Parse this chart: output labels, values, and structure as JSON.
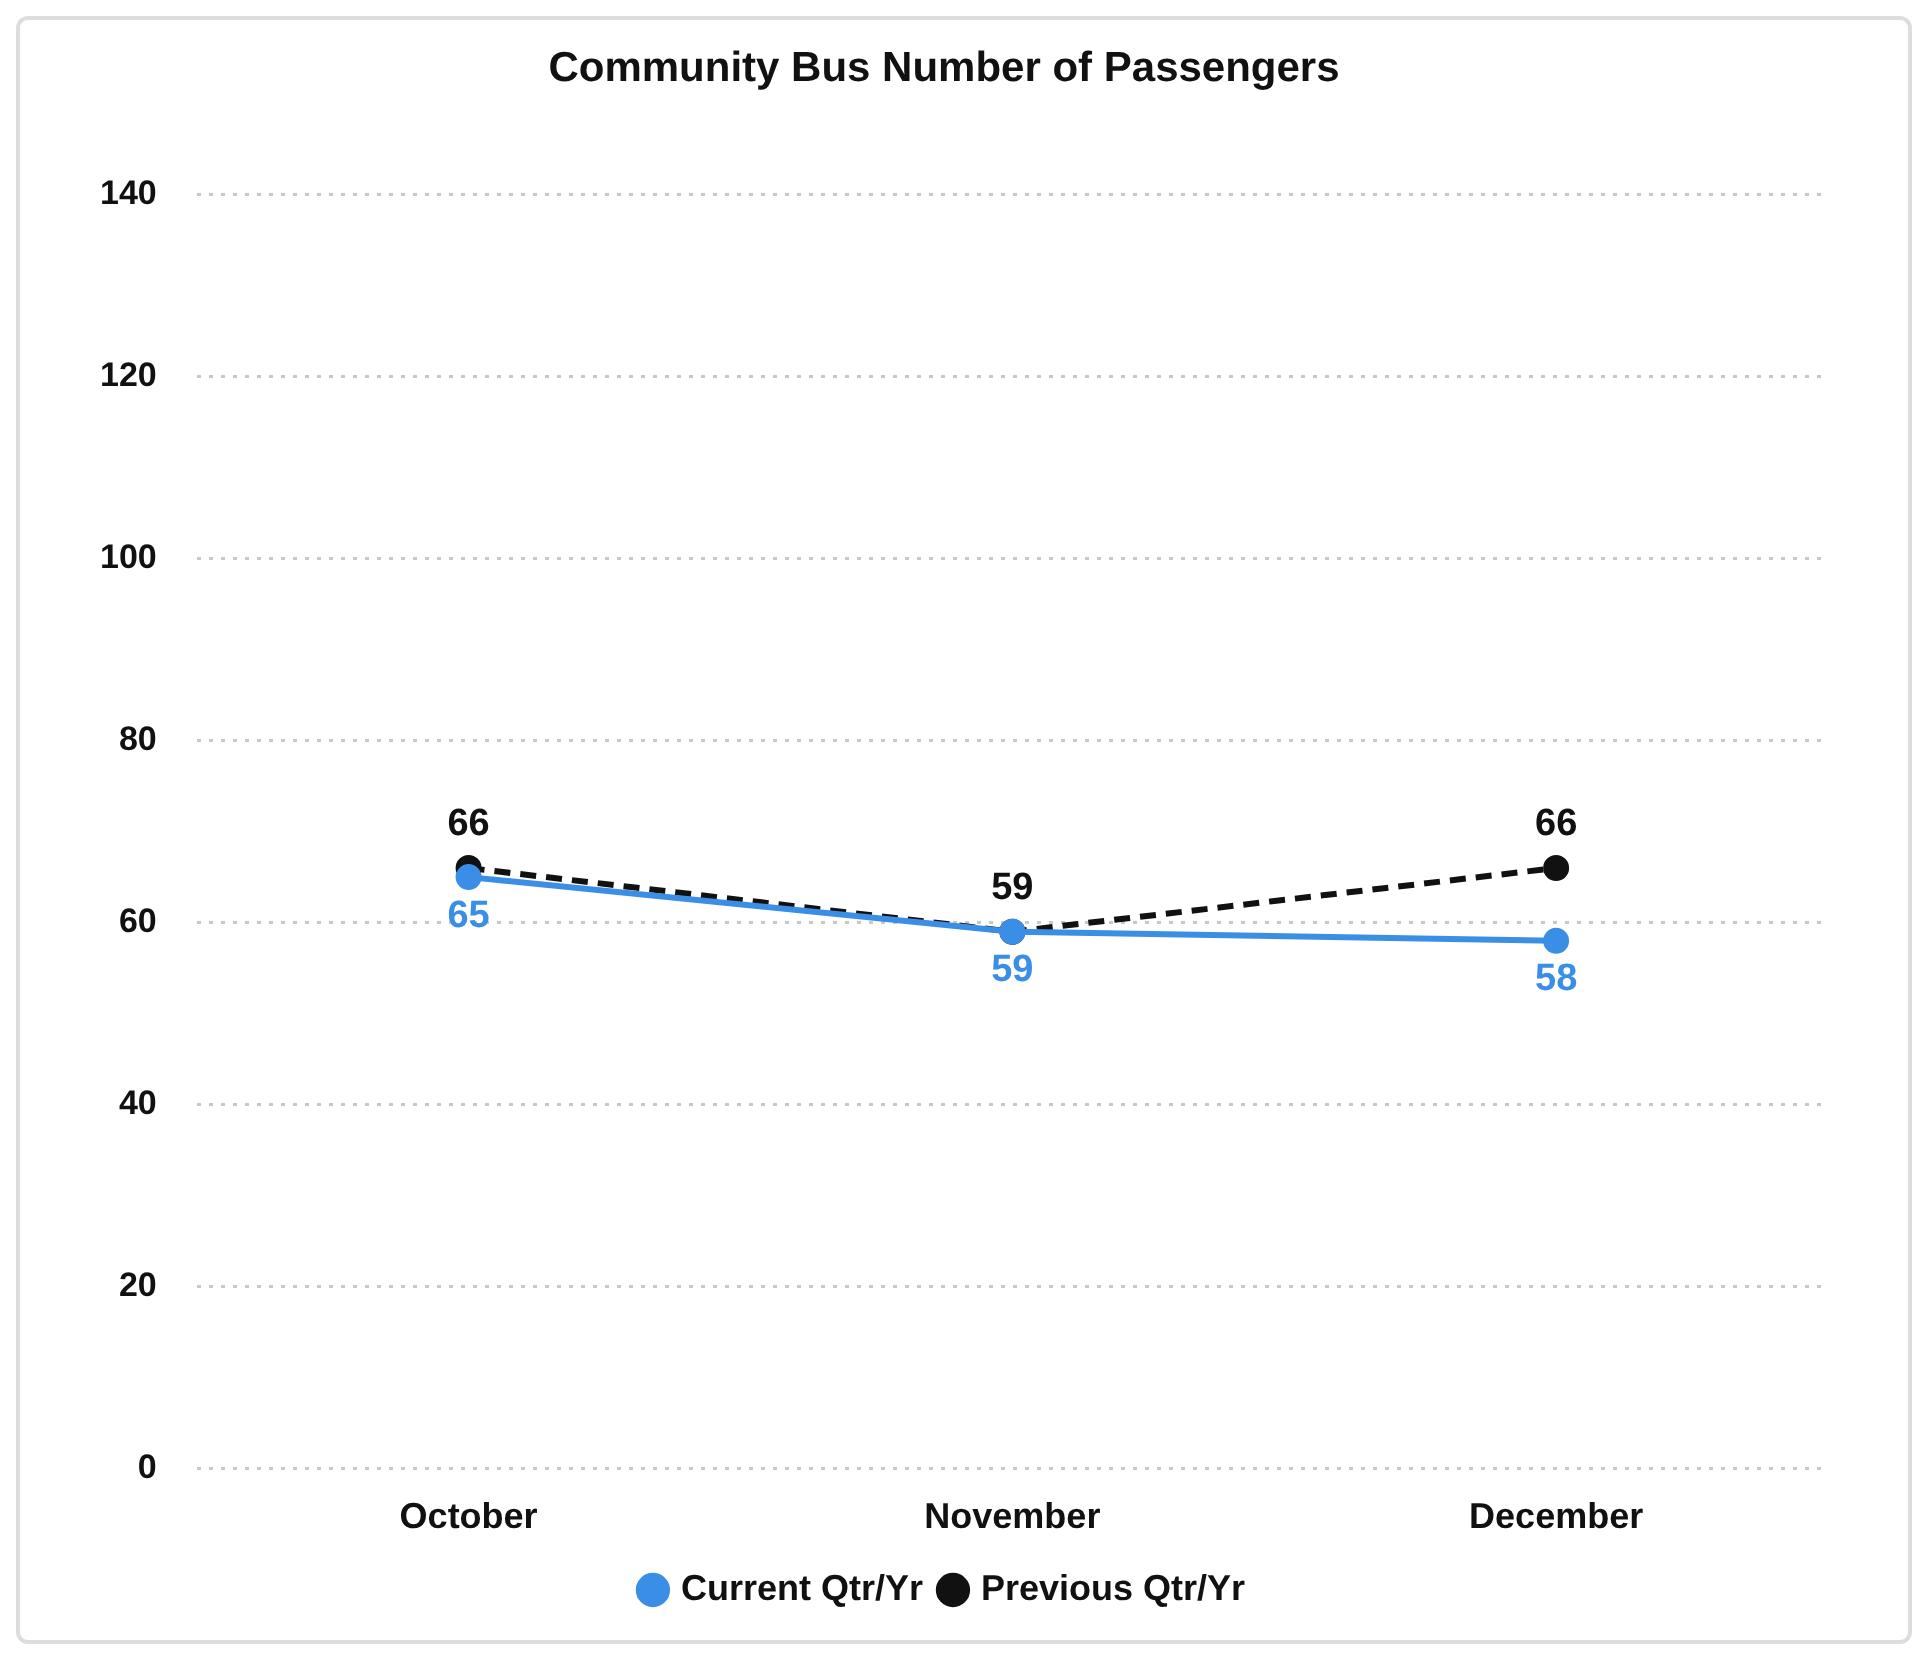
{
  "chart_data": {
    "type": "line",
    "title": "Community Bus Number of Passengers",
    "categories": [
      "October",
      "November",
      "December"
    ],
    "series": [
      {
        "name": "Current Qtr/Yr",
        "color": "#3a8ee6",
        "values": [
          65,
          59,
          58
        ],
        "line_style": "solid"
      },
      {
        "name": "Previous Qtr/Yr",
        "color": "#111111",
        "values": [
          66,
          59,
          66
        ],
        "line_style": "dashed"
      }
    ],
    "ylim": [
      0,
      140
    ],
    "yticks": [
      0,
      20,
      40,
      60,
      80,
      100,
      120,
      140
    ],
    "grid": "y",
    "legend": "bottom",
    "marker": "circle",
    "data_labels": true
  }
}
